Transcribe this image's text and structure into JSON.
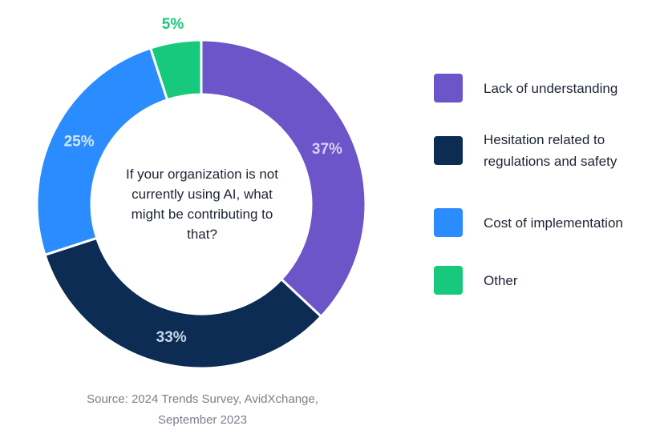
{
  "chart_data": {
    "type": "donut",
    "center_text": "If your organization is not currently using AI, what might be contributing to that?",
    "source": "Source: 2024 Trends Survey, AvidXchange, September 2023",
    "categories": [
      "Lack of understanding",
      "Hesitation related to regulations and safety",
      "Cost of implementation",
      "Other"
    ],
    "values": [
      37,
      33,
      25,
      5
    ],
    "value_labels": [
      "37%",
      "33%",
      "25%",
      "5%"
    ],
    "colors": [
      "#6b55c9",
      "#0c2c54",
      "#2a8cff",
      "#17c97c"
    ]
  }
}
